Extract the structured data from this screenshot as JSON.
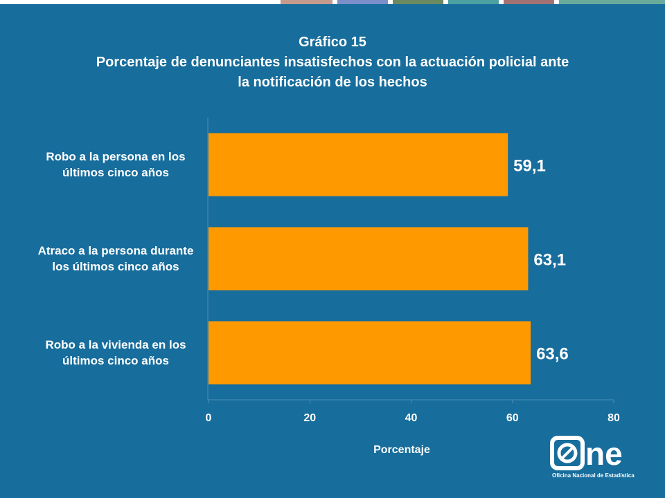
{
  "chart_data": {
    "type": "barh",
    "title": "Gráfico 15",
    "subtitle": "Porcentaje de denunciantes insatisfechos con la actuación policial ante la notificación de los hechos",
    "categories": [
      "Robo a la persona en los últimos cinco años",
      "Atraco a la persona durante los últimos cinco años",
      "Robo a la vivienda en los últimos cinco años"
    ],
    "values": [
      59.1,
      63.1,
      63.6
    ],
    "value_labels": [
      "59,1",
      "63,1",
      "63,6"
    ],
    "color": "#ff9900",
    "xlim": [
      0,
      80
    ],
    "xticks": [
      0,
      20,
      40,
      60,
      80
    ],
    "xlabel": "Porcentaje",
    "grid": false
  },
  "logo": {
    "text": "ne",
    "caption": "Oficina Nacional de Estadística"
  }
}
